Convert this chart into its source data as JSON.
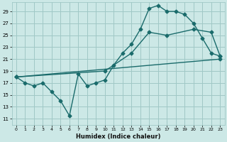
{
  "xlabel": "Humidex (Indice chaleur)",
  "bg_color": "#cce8e6",
  "grid_color": "#a0c8c6",
  "line_color": "#1a6b6b",
  "marker": "D",
  "marker_size": 2.5,
  "line_width": 1.0,
  "xlim": [
    -0.5,
    23.5
  ],
  "ylim": [
    10,
    30.5
  ],
  "yticks": [
    11,
    13,
    15,
    17,
    19,
    21,
    23,
    25,
    27,
    29
  ],
  "xticks": [
    0,
    1,
    2,
    3,
    4,
    5,
    6,
    7,
    8,
    9,
    10,
    11,
    12,
    13,
    14,
    15,
    16,
    17,
    18,
    19,
    20,
    21,
    22,
    23
  ],
  "line1_x": [
    0,
    1,
    2,
    3,
    4,
    5,
    6,
    7,
    8,
    9,
    10,
    11,
    12,
    13,
    14,
    15,
    16,
    17,
    18,
    19,
    20,
    21,
    22,
    23
  ],
  "line1_y": [
    18.0,
    17.0,
    16.5,
    17.0,
    15.5,
    14.0,
    11.5,
    18.5,
    16.5,
    17.0,
    17.5,
    20.0,
    22.0,
    23.5,
    26.0,
    29.5,
    30.0,
    29.0,
    29.0,
    28.5,
    27.0,
    24.5,
    22.0,
    21.5
  ],
  "line2_x": [
    0,
    10,
    13,
    15,
    17,
    20,
    22,
    23
  ],
  "line2_y": [
    18.0,
    19.0,
    22.0,
    25.5,
    25.0,
    26.0,
    25.5,
    21.5
  ],
  "line3_x": [
    0,
    23
  ],
  "line3_y": [
    18.0,
    21.0
  ]
}
